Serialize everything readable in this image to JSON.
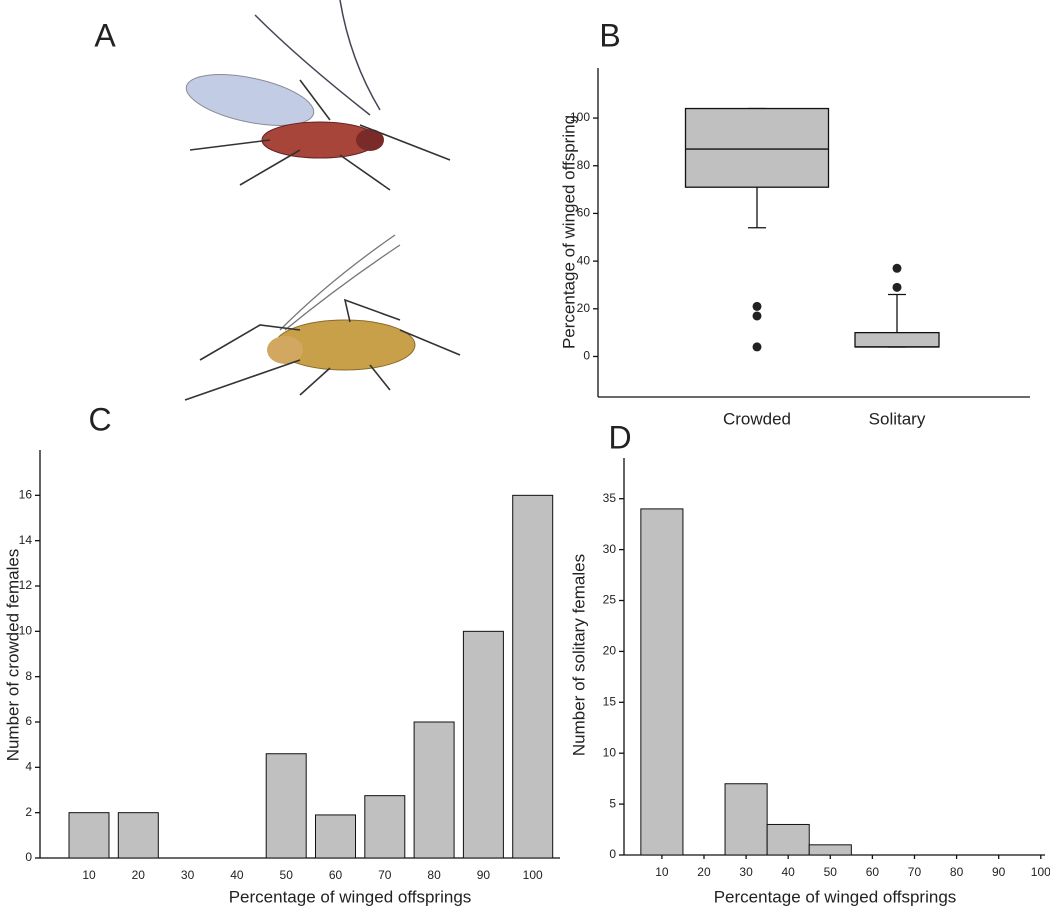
{
  "chart_data": [
    {
      "type": "image",
      "label": "A"
    },
    {
      "type": "box",
      "label": "B",
      "ylabel": "Percentage of winged offspring",
      "categories": [
        "Crowded",
        "Solitary"
      ],
      "color": "#c0c0c0",
      "boxes": [
        {
          "min": 54,
          "q1": 71,
          "median": 87,
          "q3": 104,
          "max": 104,
          "outliers": [
            21,
            17,
            4
          ]
        },
        {
          "min": 4,
          "q1": 4,
          "median": 4,
          "q3": 10,
          "max": 26,
          "outliers": [
            29,
            37
          ]
        }
      ],
      "ylim": [
        -17,
        121
      ],
      "yticks": [
        0,
        20,
        40,
        60,
        80,
        100
      ]
    },
    {
      "type": "bar",
      "label": "C",
      "ylabel": "Number of crowded females",
      "xlabel": "Percentage of winged offsprings",
      "categories": [
        "10",
        "20",
        "30",
        "40",
        "50",
        "60",
        "70",
        "80",
        "90",
        "100"
      ],
      "values": [
        2,
        2,
        0,
        0,
        4.6,
        1.9,
        2.75,
        6,
        10,
        16
      ],
      "color": "#c0c0c0",
      "ylim": [
        0,
        18
      ],
      "yticks": [
        0,
        2,
        4,
        6,
        8,
        10,
        12,
        14,
        16
      ]
    },
    {
      "type": "histogram",
      "label": "D",
      "ylabel": "Number of solitary females",
      "xlabel": "Percentage of winged offsprings",
      "bins": [
        5,
        15,
        25,
        35,
        45,
        55
      ],
      "counts": [
        34,
        0,
        7,
        3,
        1
      ],
      "color": "#c0c0c0",
      "xlim": [
        1,
        101
      ],
      "xticks": [
        10,
        20,
        30,
        40,
        50,
        60,
        70,
        80,
        90,
        100
      ],
      "ylim": [
        0,
        39
      ],
      "yticks": [
        0,
        5,
        10,
        15,
        20,
        25,
        30,
        35
      ]
    }
  ]
}
